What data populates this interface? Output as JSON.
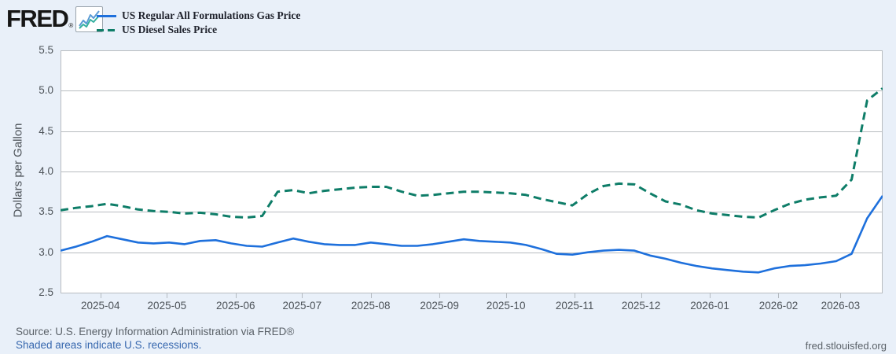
{
  "header": {
    "logo_text": "FRED",
    "logo_registered": "®",
    "legend": [
      {
        "label": "US Regular All Formulations Gas Price",
        "color": "#1e70dc",
        "style": "solid"
      },
      {
        "label": "US Diesel Sales Price",
        "color": "#0e7d68",
        "style": "dashed"
      }
    ]
  },
  "chart_data": {
    "type": "line",
    "title": "",
    "xlabel": "",
    "ylabel": "Dollars per Gallon",
    "ylim": [
      2.5,
      5.5
    ],
    "yticks": [
      5.5,
      5.0,
      4.5,
      4.0,
      3.5,
      3.0,
      2.5
    ],
    "xticks": [
      "2025-04",
      "2025-05",
      "2025-06",
      "2025-07",
      "2025-08",
      "2025-09",
      "2025-10",
      "2025-11",
      "2025-12",
      "2026-01",
      "2026-02",
      "2026-03"
    ],
    "grid": "horizontal",
    "legend_position": "top-left",
    "x_dates": [
      "2025-03-14",
      "2025-03-21",
      "2025-03-28",
      "2025-04-04",
      "2025-04-11",
      "2025-04-18",
      "2025-04-25",
      "2025-05-02",
      "2025-05-09",
      "2025-05-16",
      "2025-05-23",
      "2025-05-30",
      "2025-06-06",
      "2025-06-13",
      "2025-06-20",
      "2025-06-27",
      "2025-07-04",
      "2025-07-11",
      "2025-07-18",
      "2025-07-25",
      "2025-08-01",
      "2025-08-08",
      "2025-08-15",
      "2025-08-22",
      "2025-08-29",
      "2025-09-05",
      "2025-09-12",
      "2025-09-19",
      "2025-09-26",
      "2025-10-03",
      "2025-10-10",
      "2025-10-17",
      "2025-10-24",
      "2025-10-31",
      "2025-11-07",
      "2025-11-14",
      "2025-11-21",
      "2025-11-28",
      "2025-12-05",
      "2025-12-12",
      "2025-12-19",
      "2025-12-26",
      "2026-01-02",
      "2026-01-09",
      "2026-01-16",
      "2026-01-23",
      "2026-01-30",
      "2026-02-06",
      "2026-02-13",
      "2026-02-20",
      "2026-02-27",
      "2026-03-06",
      "2026-03-13",
      "2026-03-20"
    ],
    "series": [
      {
        "name": "US Regular All Formulations Gas Price",
        "color": "#1e70dc",
        "style": "solid",
        "values": [
          3.02,
          3.07,
          3.13,
          3.2,
          3.16,
          3.12,
          3.11,
          3.12,
          3.1,
          3.14,
          3.15,
          3.11,
          3.08,
          3.07,
          3.12,
          3.17,
          3.13,
          3.1,
          3.09,
          3.09,
          3.12,
          3.1,
          3.08,
          3.08,
          3.1,
          3.13,
          3.16,
          3.14,
          3.13,
          3.12,
          3.09,
          3.04,
          2.98,
          2.97,
          3.0,
          3.02,
          3.03,
          3.02,
          2.96,
          2.92,
          2.87,
          2.83,
          2.8,
          2.78,
          2.76,
          2.75,
          2.8,
          2.83,
          2.84,
          2.86,
          2.89,
          2.98,
          3.42,
          3.7
        ]
      },
      {
        "name": "US Diesel Sales Price",
        "color": "#0e7d68",
        "style": "dashed",
        "values": [
          3.52,
          3.55,
          3.57,
          3.6,
          3.57,
          3.53,
          3.51,
          3.5,
          3.48,
          3.49,
          3.47,
          3.44,
          3.43,
          3.45,
          3.75,
          3.77,
          3.73,
          3.76,
          3.78,
          3.8,
          3.81,
          3.81,
          3.75,
          3.7,
          3.71,
          3.73,
          3.75,
          3.75,
          3.74,
          3.73,
          3.71,
          3.66,
          3.62,
          3.58,
          3.72,
          3.82,
          3.85,
          3.84,
          3.73,
          3.63,
          3.59,
          3.52,
          3.48,
          3.46,
          3.44,
          3.43,
          3.52,
          3.6,
          3.65,
          3.68,
          3.7,
          3.9,
          4.88,
          5.03
        ]
      }
    ]
  },
  "footer": {
    "source": "Source: U.S. Energy Information Administration via FRED®",
    "recession_note": "Shaded areas indicate U.S. recessions.",
    "site": "fred.stlouisfed.org"
  },
  "colors": {
    "background": "#e9f0f9",
    "plot_background": "#ffffff",
    "gridline": "#b8bcc0",
    "axis_text": "#4d5359",
    "link": "#3667ae"
  }
}
